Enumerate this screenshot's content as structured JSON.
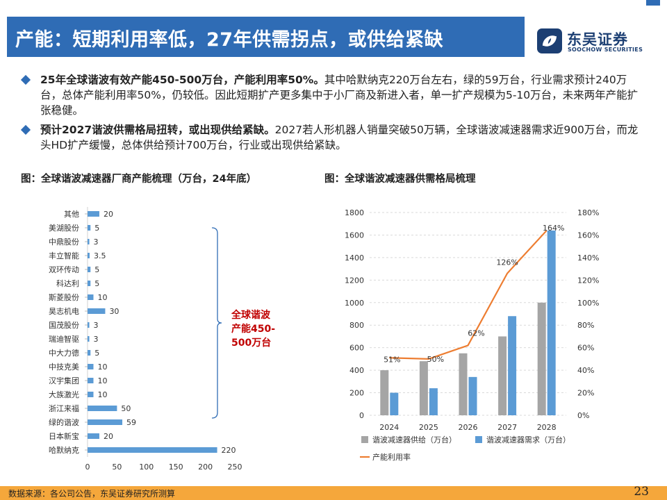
{
  "header": {
    "title": "产能：短期利用率低，27年供需拐点，或供给紧缺",
    "logo_cn": "东吴证券",
    "logo_en": "SOOCHOW SECURITIES"
  },
  "bullets": [
    {
      "bold": "25年全球谐波有效产能450-500万台，产能利用率50%。",
      "text": "其中哈默纳克220万台左右，绿的59万台，行业需求预计240万台，总体产能利用率50%，仍较低。因此短期扩产更多集中于小厂商及新进入者，单一扩产规模为5-10万台，未来两年产能扩张稳健。"
    },
    {
      "bold": "预计2027谐波供需格局扭转，或出现供给紧缺。",
      "text": "2027若人形机器人销量突破50万辆，全球谐波减速器需求近900万台，而龙头HD扩产缓慢，总体供给预计700万台，行业或出现供给紧缺。"
    }
  ],
  "figures": {
    "left_title": "图：全球谐波减速器厂商产能梳理（万台，24年底）",
    "right_title": "图：全球谐波减速器供需格局梳理"
  },
  "annotation": {
    "line1": "全球谐波",
    "line2": "产能450-",
    "line3": "500万台"
  },
  "colors": {
    "brand_blue": "#2f6cb5",
    "bar_blue": "#5b9bd5",
    "bar_gray": "#a5a5a5",
    "line_orange": "#ed7d31",
    "annotation_red": "#c00000",
    "footer_orange": "#f5a73b"
  },
  "chart_data": [
    {
      "type": "bar",
      "orientation": "horizontal",
      "categories": [
        "其他",
        "美湖股份",
        "中鼎股份",
        "丰立智能",
        "双环传动",
        "科达利",
        "斯菱股份",
        "昊志机电",
        "国茂股份",
        "瑞迪智驱",
        "中大力德",
        "中技克美",
        "汉宇集团",
        "大族激光",
        "浙江来福",
        "绿的谐波",
        "日本新宝",
        "哈默纳克"
      ],
      "values": [
        20,
        5,
        3,
        3.5,
        5,
        5,
        10,
        30,
        3,
        3,
        5,
        10,
        10,
        10,
        50,
        59,
        20,
        220
      ],
      "xticks": [
        "0",
        "50",
        "100",
        "150",
        "200",
        "250"
      ],
      "xlim": [
        0,
        250
      ]
    },
    {
      "type": "bar+line",
      "categories": [
        "2024",
        "2025",
        "2026",
        "2027",
        "2028"
      ],
      "series": [
        {
          "name": "谐波减速器供给（万台）",
          "values": [
            400,
            480,
            550,
            700,
            1000
          ]
        },
        {
          "name": "谐波减速器需求（万台）",
          "values": [
            200,
            240,
            340,
            880,
            1640
          ]
        },
        {
          "name": "产能利用率",
          "values": [
            0.51,
            0.5,
            0.62,
            1.26,
            1.64
          ],
          "axis": "right"
        }
      ],
      "line_labels": [
        "51%",
        "50%",
        "62%",
        "126%",
        "164%"
      ],
      "yticks_left": [
        "0",
        "200",
        "400",
        "600",
        "800",
        "1000",
        "1200",
        "1400",
        "1600",
        "1800"
      ],
      "yticks_right": [
        "0%",
        "20%",
        "40%",
        "60%",
        "80%",
        "100%",
        "120%",
        "140%",
        "160%",
        "180%"
      ],
      "ylim_left": [
        0,
        1800
      ],
      "ylim_right": [
        0,
        1.8
      ]
    }
  ],
  "footer": {
    "source": "数据来源：各公司公告，东吴证券研究所测算",
    "page": "23"
  }
}
